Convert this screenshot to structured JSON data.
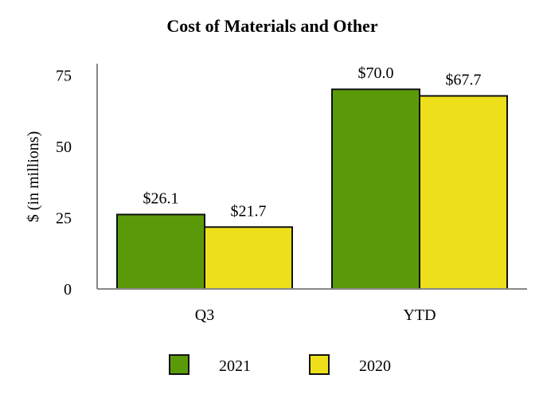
{
  "chart_data": {
    "type": "bar",
    "title": "Cost of Materials and Other",
    "xlabel": "",
    "ylabel": "$ (in millions)",
    "categories": [
      "Q3",
      "YTD"
    ],
    "ylim": [
      0,
      79
    ],
    "yticks": [
      0,
      25,
      50,
      75
    ],
    "grid": false,
    "legend_position": "bottom",
    "series": [
      {
        "name": "2021",
        "values": [
          26.1,
          70.0
        ],
        "labels": [
          "$26.1",
          "$70.0"
        ],
        "color": "#5a9a08"
      },
      {
        "name": "2020",
        "values": [
          21.7,
          67.7
        ],
        "labels": [
          "$21.7",
          "$67.7"
        ],
        "color": "#ede01a"
      }
    ]
  }
}
